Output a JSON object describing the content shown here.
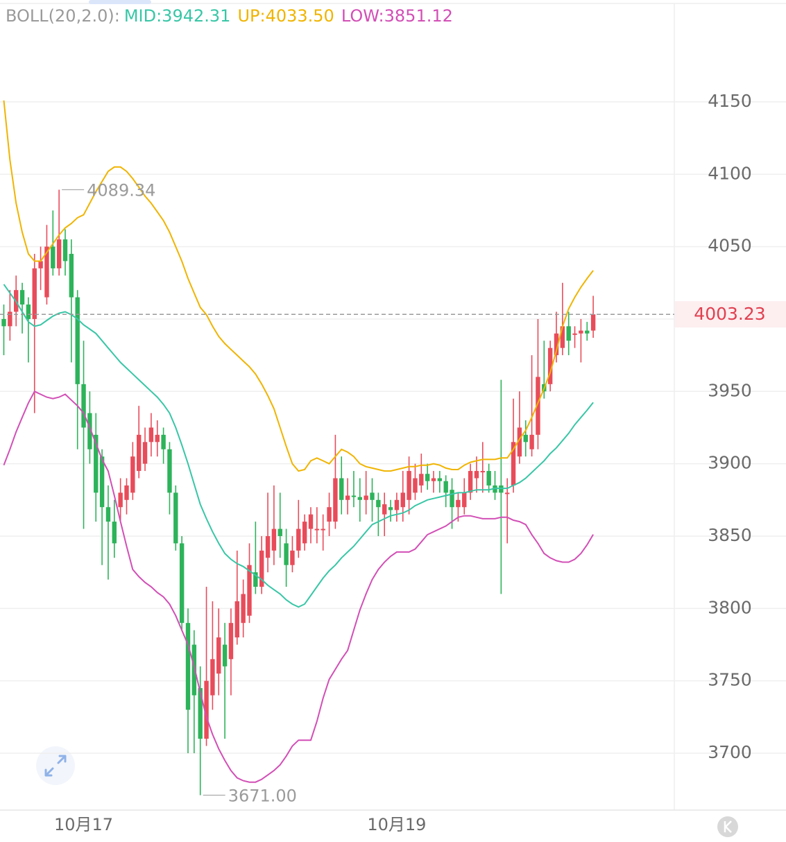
{
  "chart_data": {
    "type": "candlestick",
    "indicator": "BOLL(20,2.0):",
    "up_color": "#e84c5a",
    "down_color": "#2db35a",
    "categories": [
      null,
      null,
      null,
      null,
      null,
      null,
      null,
      null,
      null,
      null,
      null,
      null,
      null,
      "10月17",
      null,
      null,
      null,
      null,
      null,
      null,
      null,
      null,
      null,
      null,
      null,
      null,
      null,
      null,
      null,
      null,
      null,
      null,
      null,
      null,
      null,
      null,
      null,
      null,
      null,
      null,
      null,
      null,
      null,
      null,
      null,
      null,
      null,
      null,
      null,
      null,
      null,
      null,
      null,
      null,
      null,
      null,
      null,
      null,
      null,
      null,
      null,
      null,
      null,
      null,
      "10月19",
      null,
      null,
      null,
      null,
      null,
      null,
      null,
      null,
      null,
      null,
      null,
      null,
      null,
      null,
      null,
      null,
      null,
      null,
      null,
      null,
      null,
      null,
      null,
      null,
      null,
      null,
      null,
      null,
      null,
      null,
      null,
      null
    ],
    "open": [
      4000,
      3995,
      4005,
      4020,
      4010,
      4000,
      4035,
      4015,
      4050,
      4035,
      4055,
      4045,
      4015,
      3955,
      3935,
      3920,
      3905,
      3870,
      3860,
      3870,
      3875,
      3880,
      3895,
      3900,
      3915,
      3915,
      3920,
      3910,
      3880,
      3845,
      3790,
      3775,
      3745,
      3710,
      3740,
      3755,
      3775,
      3765,
      3780,
      3790,
      3795,
      3825,
      3815,
      3835,
      3840,
      3855,
      3845,
      3830,
      3840,
      3845,
      3855,
      3855,
      3855,
      3860,
      3860,
      3890,
      3875,
      3878,
      3877,
      3875,
      3880,
      3875,
      3865,
      3870,
      3868,
      3870,
      3875,
      3880,
      3885,
      3893,
      3888,
      3890,
      3888,
      3882,
      3870,
      3870,
      3880,
      3890,
      3895,
      3895,
      3885,
      3885,
      3880,
      3885,
      3905,
      3920,
      3910,
      3920,
      3955,
      3955,
      3975,
      3980,
      3995,
      3990,
      3990,
      3992,
      3992
    ],
    "high": [
      4010,
      4020,
      4030,
      4025,
      4015,
      4045,
      4050,
      4065,
      4075,
      4089.34,
      4062,
      4055,
      4020,
      3985,
      3950,
      3935,
      3910,
      3885,
      3875,
      3890,
      3890,
      3915,
      3940,
      3925,
      3935,
      3930,
      3925,
      3915,
      3885,
      3850,
      3800,
      3785,
      3760,
      3815,
      3805,
      3800,
      3790,
      3800,
      3840,
      3820,
      3845,
      3860,
      3850,
      3880,
      3885,
      3880,
      3855,
      3850,
      3875,
      3865,
      3870,
      3870,
      3865,
      3880,
      3920,
      3905,
      3890,
      3895,
      3890,
      3895,
      3890,
      3880,
      3880,
      3875,
      3880,
      3895,
      3905,
      3900,
      3907,
      3900,
      3895,
      3895,
      3892,
      3890,
      3880,
      3890,
      3900,
      3905,
      3915,
      3900,
      3895,
      3958,
      3890,
      3945,
      3950,
      3930,
      3975,
      4000,
      3985,
      3985,
      4005,
      4025,
      4005,
      3995,
      4000,
      3998,
      4016
    ],
    "low": [
      3975,
      3985,
      3995,
      3990,
      3970,
      3935,
      4020,
      4010,
      4030,
      4030,
      4030,
      3970,
      3910,
      3855,
      3900,
      3860,
      3830,
      3820,
      3835,
      3860,
      3865,
      3875,
      3890,
      3895,
      3905,
      3905,
      3900,
      3865,
      3840,
      3785,
      3700,
      3700,
      3671,
      3705,
      3730,
      3740,
      3710,
      3740,
      3775,
      3780,
      3790,
      3810,
      3810,
      3825,
      3830,
      3835,
      3815,
      3825,
      3835,
      3840,
      3845,
      3845,
      3840,
      3850,
      3855,
      3865,
      3865,
      3870,
      3860,
      3865,
      3860,
      3850,
      3850,
      3860,
      3860,
      3860,
      3865,
      3875,
      3880,
      3882,
      3880,
      3880,
      3870,
      3855,
      3860,
      3865,
      3875,
      3880,
      3880,
      3880,
      3875,
      3810,
      3845,
      3880,
      3900,
      3905,
      3905,
      3910,
      3945,
      3950,
      3970,
      3975,
      3975,
      3980,
      3970,
      3985,
      3987
    ],
    "close": [
      3995,
      4005,
      4020,
      4010,
      4000,
      4035,
      4040,
      4050,
      4035,
      4055,
      4040,
      4015,
      3955,
      3925,
      3910,
      3880,
      3870,
      3860,
      3845,
      3880,
      3885,
      3905,
      3920,
      3915,
      3925,
      3920,
      3910,
      3880,
      3845,
      3790,
      3730,
      3740,
      3710,
      3750,
      3765,
      3780,
      3760,
      3790,
      3805,
      3810,
      3830,
      3815,
      3840,
      3850,
      3855,
      3850,
      3830,
      3840,
      3855,
      3860,
      3865,
      3855,
      3855,
      3870,
      3890,
      3875,
      3878,
      3877,
      3875,
      3878,
      3875,
      3870,
      3872,
      3868,
      3875,
      3880,
      3895,
      3890,
      3893,
      3888,
      3890,
      3888,
      3880,
      3870,
      3875,
      3880,
      3895,
      3895,
      3895,
      3885,
      3880,
      3880,
      3880,
      3915,
      3925,
      3915,
      3920,
      3960,
      3950,
      3980,
      3990,
      3995,
      3985,
      3990,
      3992,
      3990,
      4003.23
    ],
    "series": [
      {
        "name": "MID:3942.31",
        "color": "#38c6a6",
        "values": [
          4024,
          4018,
          4012,
          4005,
          3998,
          3995,
          3996,
          3999,
          4002,
          4004,
          4005,
          4003,
          4000,
          3996,
          3993,
          3990,
          3985,
          3980,
          3975,
          3970,
          3966,
          3962,
          3958,
          3954,
          3950,
          3946,
          3941,
          3935,
          3925,
          3913,
          3900,
          3886,
          3872,
          3862,
          3853,
          3845,
          3838,
          3834,
          3831,
          3829,
          3826,
          3823,
          3820,
          3816,
          3813,
          3810,
          3806,
          3803,
          3801,
          3803,
          3809,
          3815,
          3821,
          3826,
          3830,
          3835,
          3839,
          3843,
          3848,
          3853,
          3858,
          3860,
          3862,
          3864,
          3865,
          3866,
          3868,
          3871,
          3873,
          3875,
          3876,
          3877,
          3878,
          3879,
          3880,
          3880,
          3881,
          3882,
          3882,
          3882,
          3883,
          3883,
          3883,
          3885,
          3887,
          3890,
          3894,
          3898,
          3902,
          3907,
          3911,
          3916,
          3921,
          3927,
          3932,
          3937,
          3942.31
        ]
      },
      {
        "name": "UP:4033.50",
        "color": "#f0b400",
        "values": [
          4151,
          4110,
          4080,
          4060,
          4045,
          4040,
          4040,
          4046,
          4052,
          4058,
          4063,
          4066,
          4070,
          4072,
          4080,
          4088,
          4095,
          4102,
          4105,
          4105,
          4102,
          4097,
          4091,
          4085,
          4080,
          4074,
          4068,
          4060,
          4050,
          4040,
          4028,
          4018,
          4008,
          4003,
          3995,
          3988,
          3983,
          3979,
          3975,
          3971,
          3967,
          3962,
          3955,
          3947,
          3938,
          3925,
          3912,
          3900,
          3895,
          3896,
          3902,
          3904,
          3902,
          3900,
          3905,
          3910,
          3908,
          3905,
          3900,
          3898,
          3897,
          3896,
          3895,
          3895,
          3896,
          3897,
          3898,
          3898,
          3899,
          3899,
          3900,
          3899,
          3897,
          3896,
          3896,
          3899,
          3901,
          3902,
          3903,
          3903,
          3903,
          3904,
          3904,
          3910,
          3917,
          3923,
          3932,
          3942,
          3952,
          3963,
          3978,
          3995,
          4007,
          4015,
          4022,
          4028,
          4033.5
        ]
      },
      {
        "name": "LOW:3851.12",
        "color": "#d24fb6",
        "values": [
          3899,
          3910,
          3922,
          3932,
          3942,
          3950,
          3948,
          3946,
          3945,
          3946,
          3948,
          3944,
          3940,
          3935,
          3925,
          3914,
          3903,
          3895,
          3878,
          3860,
          3843,
          3827,
          3822,
          3818,
          3815,
          3811,
          3808,
          3803,
          3795,
          3785,
          3775,
          3760,
          3742,
          3725,
          3713,
          3703,
          3695,
          3688,
          3683,
          3681,
          3680,
          3680,
          3682,
          3685,
          3688,
          3692,
          3698,
          3705,
          3709,
          3709,
          3709,
          3722,
          3738,
          3751,
          3758,
          3765,
          3771,
          3785,
          3799,
          3810,
          3820,
          3827,
          3832,
          3836,
          3839,
          3839,
          3839,
          3841,
          3846,
          3851,
          3853,
          3855,
          3857,
          3860,
          3863,
          3864,
          3864,
          3863,
          3862,
          3862,
          3862,
          3863,
          3863,
          3861,
          3860,
          3858,
          3851,
          3845,
          3838,
          3835,
          3833,
          3832,
          3832,
          3834,
          3838,
          3844,
          3851.12
        ]
      }
    ],
    "annotations": [
      "4089.34",
      "3671.00"
    ],
    "ylim": [
      3660.7,
      4220.4
    ],
    "yticks": [
      3700,
      3750,
      3800,
      3850,
      3900,
      3950,
      4000,
      4050,
      4100,
      4150
    ],
    "grid": true
  }
}
